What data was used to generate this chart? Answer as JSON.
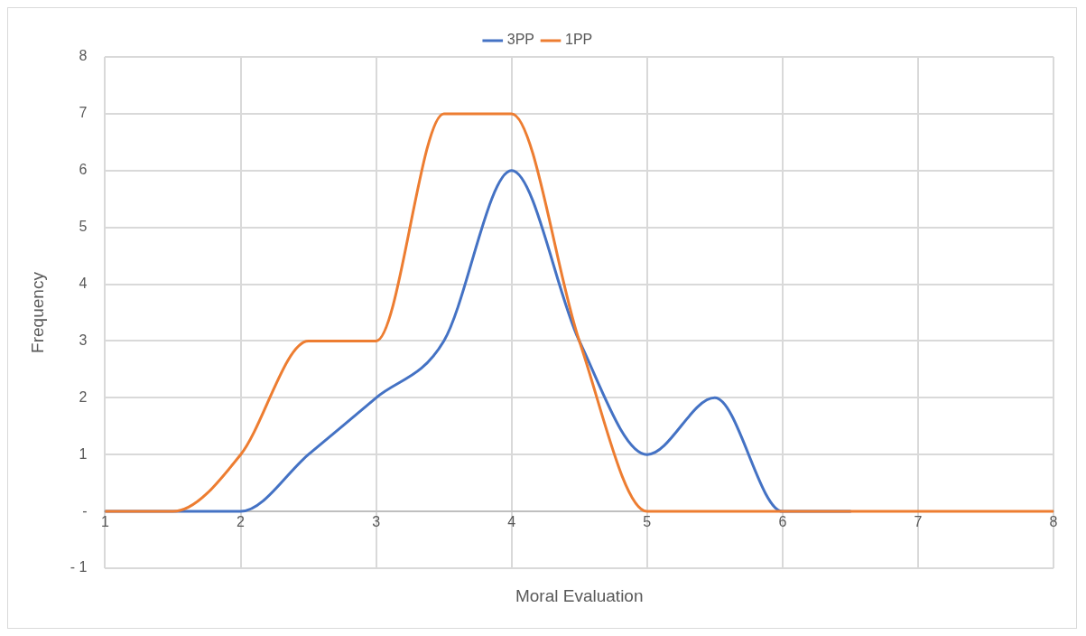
{
  "chart_data": {
    "type": "line",
    "xlabel": "Moral Evaluation",
    "ylabel": "Frequency",
    "x": [
      1,
      1.5,
      2,
      2.5,
      3,
      3.5,
      4,
      4.5,
      5,
      5.5,
      6,
      6.5,
      7,
      7.5,
      8
    ],
    "series": [
      {
        "name": "3PP",
        "color": "#4472c4",
        "values": [
          0,
          0,
          0,
          1,
          2,
          3,
          6,
          3,
          1,
          2,
          0,
          0,
          null,
          null,
          null
        ]
      },
      {
        "name": "1PP",
        "color": "#ed7d31",
        "values": [
          0,
          0,
          1,
          3,
          3,
          7,
          7,
          3,
          0,
          0,
          0,
          0,
          0,
          0,
          0
        ]
      }
    ],
    "xlim": [
      1,
      8
    ],
    "xticks": [
      1,
      2,
      3,
      4,
      5,
      6,
      7,
      8
    ],
    "ylim": [
      -1,
      8
    ],
    "yticks": [
      {
        "value": -1,
        "label": "- 1"
      },
      {
        "value": 0,
        "label": "-"
      },
      1,
      2,
      3,
      4,
      5,
      6,
      7,
      8
    ],
    "grid": true,
    "legend": "top",
    "marker": "none",
    "line_style": "solid"
  }
}
